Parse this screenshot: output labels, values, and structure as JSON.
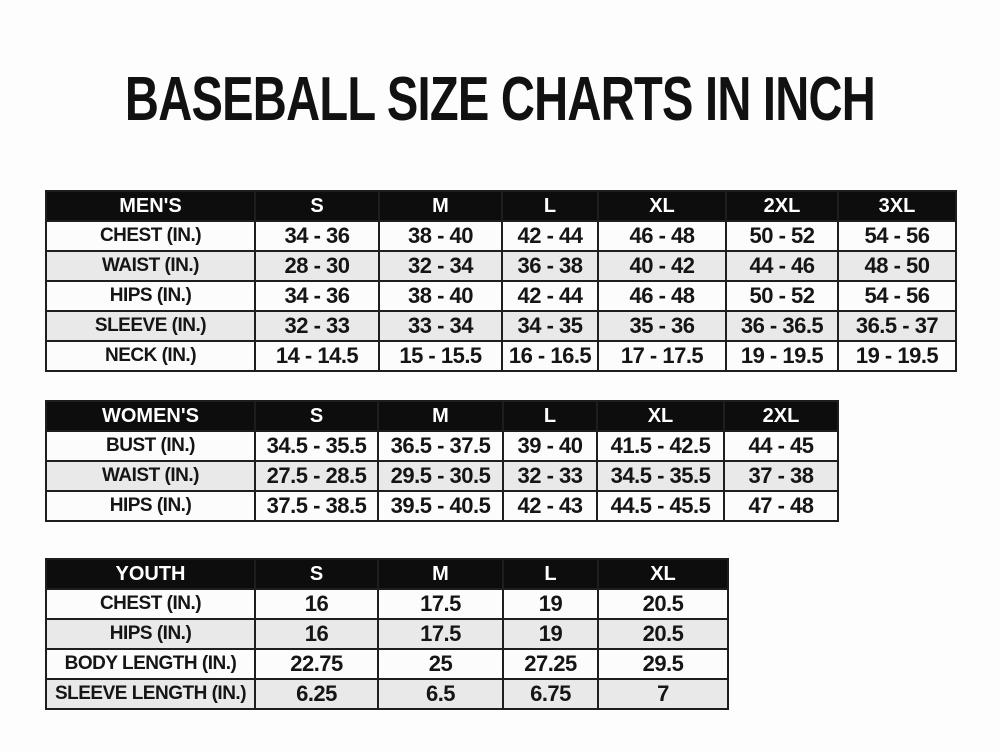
{
  "title": "BASEBALL SIZE CHARTS IN INCH",
  "colors": {
    "header_bg": "#0d0d0d",
    "header_text": "#ffffff",
    "row_bg": "#fcfcfc",
    "row_alt_bg": "#e9e9e9",
    "border": "#1e1e1e",
    "text": "#151515",
    "page_bg": "#fdfdfd"
  },
  "chart_data": [
    {
      "type": "table",
      "name": "MEN'S",
      "columns": [
        "S",
        "M",
        "L",
        "XL",
        "2XL",
        "3XL"
      ],
      "rows": [
        {
          "label": "CHEST (IN.)",
          "values": [
            "34 - 36",
            "38 - 40",
            "42 - 44",
            "46 - 48",
            "50 - 52",
            "54 - 56"
          ]
        },
        {
          "label": "WAIST (IN.)",
          "values": [
            "28 - 30",
            "32 - 34",
            "36 - 38",
            "40 - 42",
            "44 - 46",
            "48 - 50"
          ]
        },
        {
          "label": "HIPS (IN.)",
          "values": [
            "34 - 36",
            "38 - 40",
            "42 - 44",
            "46 - 48",
            "50 - 52",
            "54 - 56"
          ]
        },
        {
          "label": "SLEEVE (IN.)",
          "values": [
            "32 - 33",
            "33 - 34",
            "34 - 35",
            "35 - 36",
            "36 - 36.5",
            "36.5 - 37"
          ]
        },
        {
          "label": "NECK (IN.)",
          "values": [
            "14 - 14.5",
            "15 - 15.5",
            "16 - 16.5",
            "17 - 17.5",
            "19 - 19.5",
            "19 - 19.5"
          ]
        }
      ]
    },
    {
      "type": "table",
      "name": "WOMEN'S",
      "columns": [
        "S",
        "M",
        "L",
        "XL",
        "2XL"
      ],
      "rows": [
        {
          "label": "BUST (IN.)",
          "values": [
            "34.5 - 35.5",
            "36.5 - 37.5",
            "39 - 40",
            "41.5 - 42.5",
            "44 - 45"
          ]
        },
        {
          "label": "WAIST (IN.)",
          "values": [
            "27.5 - 28.5",
            "29.5 - 30.5",
            "32 - 33",
            "34.5 - 35.5",
            "37 - 38"
          ]
        },
        {
          "label": "HIPS (IN.)",
          "values": [
            "37.5 - 38.5",
            "39.5 - 40.5",
            "42 - 43",
            "44.5 - 45.5",
            "47 - 48"
          ]
        }
      ]
    },
    {
      "type": "table",
      "name": "YOUTH",
      "columns": [
        "S",
        "M",
        "L",
        "XL"
      ],
      "rows": [
        {
          "label": "CHEST (IN.)",
          "values": [
            "16",
            "17.5",
            "19",
            "20.5"
          ]
        },
        {
          "label": "HIPS (IN.)",
          "values": [
            "16",
            "17.5",
            "19",
            "20.5"
          ]
        },
        {
          "label": "BODY LENGTH (IN.)",
          "values": [
            "22.75",
            "25",
            "27.25",
            "29.5"
          ]
        },
        {
          "label": "SLEEVE LENGTH (IN.)",
          "values": [
            "6.25",
            "6.5",
            "6.75",
            "7"
          ]
        }
      ]
    }
  ]
}
